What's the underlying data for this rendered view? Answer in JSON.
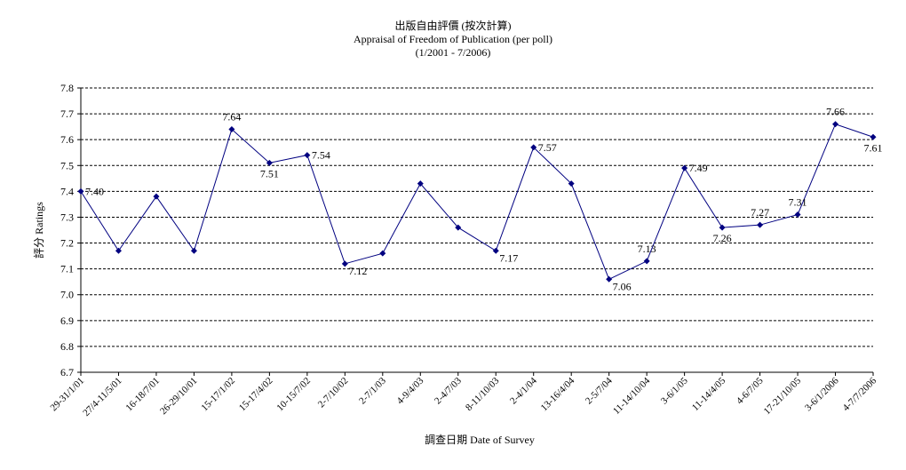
{
  "chart_data": {
    "type": "line",
    "title": "出版自由評價 (按次計算)",
    "subtitle": "Appraisal of Freedom of Publication (per poll)",
    "subtitle2": "(1/2001 - 7/2006)",
    "xlabel": "調查日期 Date of Survey",
    "ylabel": "評分 Ratings",
    "ylim": [
      6.7,
      7.8
    ],
    "yticks": [
      "7.8",
      "7.7",
      "7.6",
      "7.5",
      "7.4",
      "7.3",
      "7.2",
      "7.1",
      "7.0",
      "6.9",
      "6.8",
      "6.7"
    ],
    "grid": true,
    "legend": "none",
    "line_color": "#000080",
    "categories": [
      "29-31/1/01",
      "27/4-11/5/01",
      "16-18/7/01",
      "26-29/10/01",
      "15-17/1/02",
      "15-17/4/02",
      "10-15/7/02",
      "2-7/10/02",
      "2-7/1/03",
      "4-9/4/03",
      "2-4/7/03",
      "8-11/10/03",
      "2-4/1/04",
      "13-16/4/04",
      "2-5/7/04",
      "11-14/10/04",
      "3-6/1/05",
      "11-14/4/05",
      "4-6/7/05",
      "17-21/10/05",
      "3-6/1/2006",
      "4-7/7/2006"
    ],
    "series": [
      {
        "values": [
          7.4,
          7.17,
          7.38,
          7.17,
          7.64,
          7.51,
          7.54,
          7.12,
          7.16,
          7.43,
          7.26,
          7.17,
          7.57,
          7.43,
          7.06,
          7.13,
          7.49,
          7.26,
          7.27,
          7.31,
          7.66,
          7.61
        ],
        "data_labels": [
          "7.40",
          "",
          "",
          "",
          "7.64",
          "7.51",
          "7.54",
          "7.12",
          "",
          "",
          "",
          "7.17",
          "7.57",
          "",
          "7.06",
          "7.13",
          "7.49",
          "7.26",
          "7.27",
          "7.31",
          "7.66",
          "7.61"
        ]
      }
    ]
  }
}
